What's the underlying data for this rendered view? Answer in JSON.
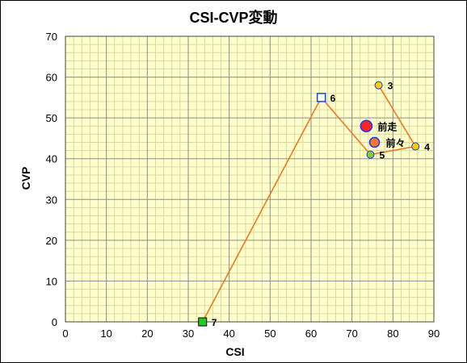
{
  "chart_data": {
    "type": "scatter",
    "title": "CSI-CVP変動",
    "xlabel": "CSI",
    "ylabel": "CVP",
    "xlim": [
      0,
      90
    ],
    "ylim": [
      0,
      70
    ],
    "xticks": [
      0,
      10,
      20,
      30,
      40,
      50,
      60,
      70,
      80,
      90
    ],
    "yticks": [
      0,
      10,
      20,
      30,
      40,
      50,
      60,
      70
    ],
    "minor_grid": {
      "x_step": 2,
      "y_step": 2
    },
    "grid": true,
    "background_color": "#FFFFCC",
    "line_color": "#F07820",
    "series": [
      {
        "type": "line",
        "points": [
          {
            "label": "7",
            "x": 33.5,
            "y": 0,
            "marker": "square",
            "color": "#22CC22"
          },
          {
            "label": "6",
            "x": 62.5,
            "y": 55,
            "marker": "square-open",
            "color": "#1144FF"
          },
          {
            "label": "5",
            "x": 74.5,
            "y": 41,
            "marker": "circle",
            "color": "#88CC33"
          },
          {
            "label": "4",
            "x": 85.5,
            "y": 43,
            "marker": "circle",
            "color": "#FFCC00"
          },
          {
            "label": "3",
            "x": 76.5,
            "y": 58,
            "marker": "circle",
            "color": "#FFCC00"
          }
        ]
      }
    ],
    "highlights": [
      {
        "label": "前走",
        "x": 73.5,
        "y": 48,
        "color": "#FF2222",
        "edge": "#1A3AFF"
      },
      {
        "label": "前々",
        "x": 75.5,
        "y": 44,
        "color": "#FF7722",
        "edge": "#1A3AFF"
      }
    ]
  }
}
